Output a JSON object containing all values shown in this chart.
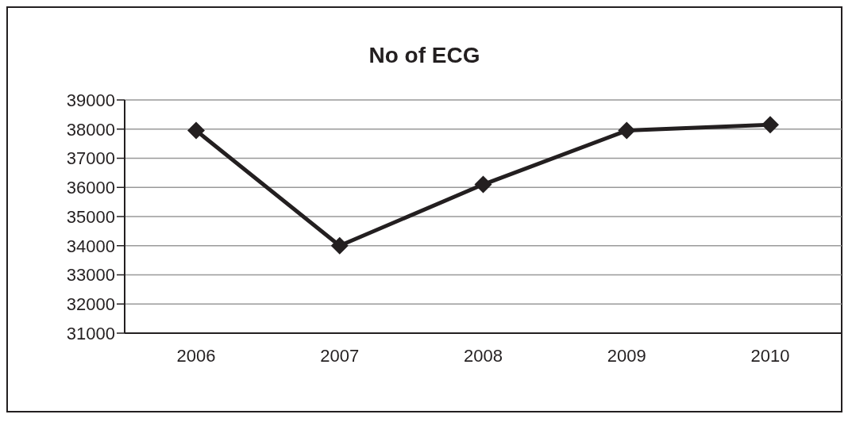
{
  "chart_data": {
    "type": "line",
    "title": "No of ECG",
    "categories": [
      "2006",
      "2007",
      "2008",
      "2009",
      "2010"
    ],
    "series": [
      {
        "color": "#231f20",
        "values": [
          37950,
          34000,
          36100,
          37950,
          38150
        ]
      }
    ],
    "ylim": [
      31000,
      39000
    ],
    "yticks": [
      31000,
      32000,
      33000,
      34000,
      35000,
      36000,
      37000,
      38000,
      39000
    ],
    "grid": "y",
    "legend": false,
    "marker": "diamond",
    "line_style": "solid"
  }
}
